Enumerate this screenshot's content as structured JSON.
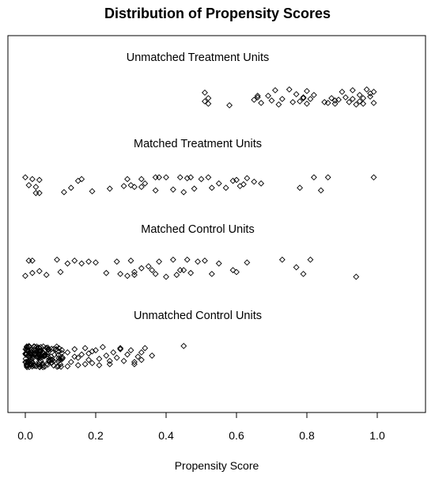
{
  "chart_data": {
    "type": "scatter",
    "title": "Distribution of Propensity Scores",
    "xlabel": "Propensity Score",
    "ylabel": "",
    "xlim": [
      -0.05,
      1.12
    ],
    "x_ticks": [
      "0.0",
      "0.2",
      "0.4",
      "0.6",
      "0.8",
      "1.0"
    ],
    "x_tick_values": [
      0.0,
      0.2,
      0.4,
      0.6,
      0.8,
      1.0
    ],
    "grid": false,
    "marker": "open-diamond",
    "groups": [
      {
        "name": "Unmatched Treatment Units",
        "values": [
          0.51,
          0.52,
          0.52,
          0.51,
          0.58,
          0.65,
          0.66,
          0.67,
          0.69,
          0.7,
          0.71,
          0.72,
          0.73,
          0.75,
          0.77,
          0.78,
          0.79,
          0.8,
          0.8,
          0.81,
          0.82,
          0.85,
          0.86,
          0.87,
          0.88,
          0.89,
          0.9,
          0.91,
          0.92,
          0.93,
          0.94,
          0.95,
          0.95,
          0.96,
          0.97,
          0.98,
          0.99,
          0.99,
          0.66,
          0.76,
          0.79,
          0.88,
          0.93,
          0.96,
          0.98
        ],
        "jitter": [
          0.2,
          0.55,
          0.9,
          0.75,
          1.0,
          0.65,
          0.5,
          0.85,
          0.4,
          0.7,
          0.05,
          0.95,
          0.6,
          0.0,
          0.3,
          0.75,
          0.5,
          0.9,
          0.1,
          0.6,
          0.35,
          0.8,
          0.85,
          0.55,
          0.9,
          0.65,
          0.15,
          0.5,
          0.8,
          0.05,
          0.95,
          0.35,
          0.75,
          0.55,
          0.0,
          0.45,
          0.15,
          0.85,
          0.4,
          0.8,
          0.55,
          0.7,
          0.6,
          0.9,
          0.25
        ]
      },
      {
        "name": "Matched Treatment Units",
        "values": [
          0.0,
          0.01,
          0.02,
          0.03,
          0.03,
          0.04,
          0.04,
          0.11,
          0.13,
          0.15,
          0.16,
          0.19,
          0.24,
          0.28,
          0.29,
          0.3,
          0.31,
          0.33,
          0.33,
          0.34,
          0.37,
          0.37,
          0.38,
          0.4,
          0.42,
          0.44,
          0.45,
          0.46,
          0.47,
          0.48,
          0.5,
          0.52,
          0.53,
          0.55,
          0.57,
          0.59,
          0.6,
          0.61,
          0.62,
          0.63,
          0.65,
          0.67,
          0.78,
          0.82,
          0.84,
          0.86,
          0.99
        ],
        "jitter": [
          0.0,
          0.45,
          0.1,
          0.9,
          0.55,
          0.9,
          0.15,
          0.85,
          0.6,
          0.2,
          0.1,
          0.8,
          0.65,
          0.5,
          0.1,
          0.45,
          0.55,
          0.1,
          0.55,
          0.35,
          0.0,
          0.75,
          0.0,
          0.0,
          0.7,
          0.0,
          0.85,
          0.05,
          0.0,
          0.65,
          0.1,
          0.0,
          0.6,
          0.35,
          0.6,
          0.2,
          0.15,
          0.5,
          0.4,
          0.05,
          0.25,
          0.35,
          0.6,
          0.0,
          0.75,
          0.0,
          0.0
        ]
      },
      {
        "name": "Matched Control Units",
        "values": [
          0.0,
          0.01,
          0.02,
          0.02,
          0.04,
          0.06,
          0.09,
          0.1,
          0.12,
          0.14,
          0.16,
          0.18,
          0.2,
          0.23,
          0.26,
          0.27,
          0.29,
          0.3,
          0.31,
          0.31,
          0.33,
          0.35,
          0.36,
          0.37,
          0.38,
          0.4,
          0.42,
          0.43,
          0.44,
          0.45,
          0.46,
          0.47,
          0.49,
          0.51,
          0.53,
          0.55,
          0.59,
          0.6,
          0.63,
          0.73,
          0.77,
          0.79,
          0.81,
          0.94
        ],
        "jitter": [
          0.85,
          0.05,
          0.7,
          0.05,
          0.6,
          0.8,
          0.0,
          0.65,
          0.2,
          0.05,
          0.2,
          0.1,
          0.15,
          0.7,
          0.1,
          0.75,
          0.85,
          0.05,
          0.65,
          0.8,
          0.45,
          0.35,
          0.55,
          0.75,
          0.1,
          0.9,
          0.0,
          0.8,
          0.55,
          0.55,
          0.0,
          0.7,
          0.1,
          0.05,
          0.75,
          0.2,
          0.55,
          0.65,
          0.15,
          0.0,
          0.4,
          0.75,
          0.0,
          0.9
        ]
      },
      {
        "name": "Unmatched Control Units",
        "dense_cluster": {
          "x_range": [
            0.0,
            0.11
          ],
          "count": 140
        },
        "tail_values": [
          0.12,
          0.13,
          0.14,
          0.15,
          0.15,
          0.16,
          0.17,
          0.18,
          0.18,
          0.19,
          0.2,
          0.21,
          0.22,
          0.23,
          0.24,
          0.25,
          0.26,
          0.27,
          0.28,
          0.29,
          0.3,
          0.31,
          0.32,
          0.33,
          0.34,
          0.36,
          0.45,
          0.12,
          0.14,
          0.17,
          0.19,
          0.21,
          0.24,
          0.27,
          0.31,
          0.33
        ],
        "tail_jitter": [
          0.3,
          0.75,
          0.15,
          0.55,
          0.9,
          0.4,
          0.1,
          0.65,
          0.35,
          0.8,
          0.2,
          0.6,
          0.05,
          0.45,
          0.85,
          0.3,
          0.55,
          0.15,
          0.7,
          0.4,
          0.2,
          0.85,
          0.5,
          0.65,
          0.1,
          0.45,
          0.0,
          0.95,
          0.5,
          0.85,
          0.25,
          0.9,
          0.7,
          0.1,
          0.75,
          0.3
        ]
      }
    ]
  }
}
